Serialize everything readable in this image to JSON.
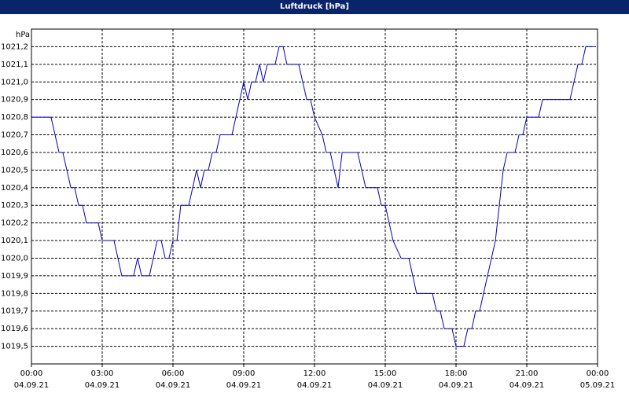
{
  "chart_data": {
    "type": "line",
    "title": "Luftdruck [hPa]",
    "y_label": "hPa",
    "xlim": [
      0,
      24
    ],
    "ylim": [
      1019.4,
      1021.3
    ],
    "grid": true,
    "xticks": [
      {
        "value": 0,
        "label": "00:00\n04.09.21"
      },
      {
        "value": 3,
        "label": "03:00\n04.09.21"
      },
      {
        "value": 6,
        "label": "06:00\n04.09.21"
      },
      {
        "value": 9,
        "label": "09:00\n04.09.21"
      },
      {
        "value": 12,
        "label": "12:00\n04.09.21"
      },
      {
        "value": 15,
        "label": "15:00\n04.09.21"
      },
      {
        "value": 18,
        "label": "18:00\n04.09.21"
      },
      {
        "value": 21,
        "label": "21:00\n04.09.21"
      },
      {
        "value": 24,
        "label": "00:00\n05.09.21"
      }
    ],
    "yticks": [
      {
        "value": 1019.5,
        "label": "1019,5"
      },
      {
        "value": 1019.6,
        "label": "1019,6"
      },
      {
        "value": 1019.7,
        "label": "1019,7"
      },
      {
        "value": 1019.8,
        "label": "1019,8"
      },
      {
        "value": 1019.9,
        "label": "1019,9"
      },
      {
        "value": 1020.0,
        "label": "1020,0"
      },
      {
        "value": 1020.1,
        "label": "1020,1"
      },
      {
        "value": 1020.2,
        "label": "1020,2"
      },
      {
        "value": 1020.3,
        "label": "1020,3"
      },
      {
        "value": 1020.4,
        "label": "1020,4"
      },
      {
        "value": 1020.5,
        "label": "1020,5"
      },
      {
        "value": 1020.6,
        "label": "1020,6"
      },
      {
        "value": 1020.7,
        "label": "1020,7"
      },
      {
        "value": 1020.8,
        "label": "1020,8"
      },
      {
        "value": 1020.9,
        "label": "1020,9"
      },
      {
        "value": 1021.0,
        "label": "1021,0"
      },
      {
        "value": 1021.1,
        "label": "1021,1"
      },
      {
        "value": 1021.2,
        "label": "1021,2"
      }
    ],
    "x": [
      0,
      0.83,
      1.17,
      1.33,
      1.67,
      1.83,
      2,
      2.17,
      2.33,
      2.83,
      3,
      3.5,
      3.83,
      4.33,
      4.5,
      4.67,
      5,
      5.33,
      5.5,
      5.67,
      5.83,
      6,
      6.17,
      6.33,
      6.67,
      7,
      7.17,
      7.33,
      7.5,
      7.67,
      7.83,
      8,
      8.5,
      9,
      9.17,
      9.33,
      9.5,
      9.67,
      9.83,
      10,
      10.33,
      10.5,
      10.67,
      10.83,
      11.33,
      11.67,
      11.83,
      12,
      12.33,
      12.5,
      12.67,
      13,
      13.17,
      13.83,
      14.17,
      14.67,
      14.83,
      15,
      15.33,
      15.67,
      16,
      16.33,
      17,
      17.17,
      17.33,
      17.5,
      17.83,
      18,
      18.33,
      18.5,
      18.67,
      18.83,
      19,
      19.67,
      20,
      20.17,
      20.5,
      20.67,
      20.83,
      21,
      21.5,
      21.67,
      22.83,
      23.17,
      23.33,
      23.5,
      23.83
    ],
    "series": [
      {
        "color": "#0000c0",
        "values": [
          1020.8,
          1020.8,
          1020.6,
          1020.6,
          1020.4,
          1020.4,
          1020.3,
          1020.3,
          1020.2,
          1020.2,
          1020.1,
          1020.1,
          1019.9,
          1019.9,
          1020.0,
          1019.9,
          1019.9,
          1020.1,
          1020.1,
          1020.0,
          1020.0,
          1020.1,
          1020.1,
          1020.3,
          1020.3,
          1020.5,
          1020.4,
          1020.5,
          1020.5,
          1020.6,
          1020.6,
          1020.7,
          1020.7,
          1021.0,
          1020.9,
          1021.0,
          1021.0,
          1021.1,
          1021.0,
          1021.1,
          1021.1,
          1021.2,
          1021.2,
          1021.1,
          1021.1,
          1020.9,
          1020.9,
          1020.8,
          1020.7,
          1020.6,
          1020.6,
          1020.4,
          1020.6,
          1020.6,
          1020.4,
          1020.4,
          1020.3,
          1020.3,
          1020.1,
          1020.0,
          1020.0,
          1019.8,
          1019.8,
          1019.7,
          1019.7,
          1019.6,
          1019.6,
          1019.5,
          1019.5,
          1019.6,
          1019.6,
          1019.7,
          1019.7,
          1020.1,
          1020.5,
          1020.6,
          1020.6,
          1020.7,
          1020.7,
          1020.8,
          1020.8,
          1020.9,
          1020.9,
          1021.1,
          1021.1,
          1021.2,
          1021.2
        ]
      }
    ]
  }
}
